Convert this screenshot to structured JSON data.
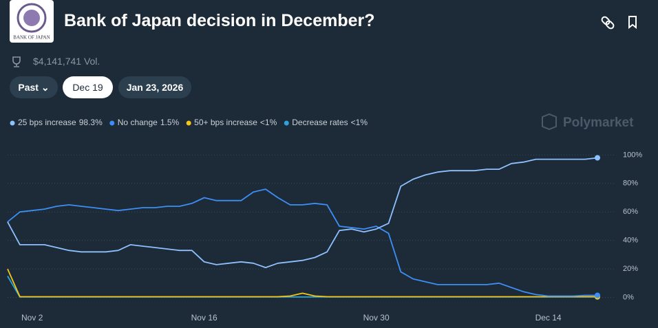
{
  "header": {
    "logo_text": "BANK OF JAPAN",
    "title": "Bank of Japan decision in December?",
    "volume": "$4,141,741 Vol."
  },
  "buttons": [
    "Past",
    "Dec 19",
    "Jan 23, 2026"
  ],
  "watermark": "Polymarket",
  "chart_data": {
    "type": "line",
    "categories": [
      null,
      null,
      "Nov 2",
      null,
      null,
      null,
      null,
      null,
      null,
      null,
      null,
      null,
      null,
      null,
      null,
      null,
      "Nov 16",
      null,
      null,
      null,
      null,
      null,
      null,
      null,
      null,
      null,
      null,
      null,
      null,
      null,
      "Nov 30",
      null,
      null,
      null,
      null,
      null,
      null,
      null,
      null,
      null,
      null,
      null,
      null,
      null,
      "Dec 14",
      null,
      null,
      null,
      null
    ],
    "series": [
      {
        "name": "25 bps increase",
        "color": "#8ec1ff",
        "values": [
          53,
          37,
          37,
          37,
          35,
          33,
          32,
          32,
          32,
          33,
          37,
          36,
          35,
          34,
          33,
          33,
          25,
          23,
          24,
          25,
          24,
          21,
          24,
          25,
          26,
          28,
          32,
          47,
          48,
          46,
          48,
          52,
          78,
          83,
          86,
          88,
          89,
          89,
          89,
          90,
          90,
          94,
          95,
          97,
          97,
          97,
          97,
          97,
          98
        ]
      },
      {
        "name": "No change",
        "color": "#3d8ff5",
        "values": [
          53,
          60,
          61,
          62,
          64,
          65,
          64,
          63,
          62,
          61,
          62,
          63,
          63,
          64,
          64,
          66,
          70,
          68,
          68,
          68,
          74,
          76,
          70,
          65,
          65,
          66,
          65,
          50,
          49,
          48,
          50,
          45,
          18,
          13,
          11,
          9,
          9,
          9,
          9,
          9,
          10,
          7,
          4,
          2,
          1,
          1,
          1,
          1.5,
          1.5
        ]
      },
      {
        "name": "50+ bps increase",
        "color": "#f5c518",
        "values": [
          20,
          0.5,
          0.5,
          0.5,
          0.5,
          0.5,
          0.5,
          0.5,
          0.5,
          0.5,
          0.5,
          0.5,
          0.5,
          0.5,
          0.5,
          0.5,
          0.5,
          0.5,
          0.5,
          0.5,
          0.5,
          0.5,
          0.5,
          1,
          3,
          1,
          0.5,
          0.5,
          0.5,
          0.5,
          0.5,
          0.5,
          0.5,
          0.5,
          0.5,
          0.5,
          0.5,
          0.5,
          0.5,
          0.5,
          0.5,
          0.5,
          0.5,
          0.5,
          0.5,
          0.5,
          0.5,
          0.5,
          0.5
        ]
      },
      {
        "name": "Decrease rates",
        "color": "#2ba3db",
        "values": [
          15,
          0.3,
          0.3,
          0.3,
          0.3,
          0.3,
          0.3,
          0.3,
          0.3,
          0.3,
          0.3,
          0.3,
          0.3,
          0.3,
          0.3,
          0.3,
          0.3,
          0.3,
          0.3,
          0.3,
          0.3,
          0.3,
          0.3,
          0.3,
          0.3,
          0.3,
          0.3,
          0.3,
          0.3,
          0.3,
          0.3,
          0.3,
          0.3,
          0.3,
          0.3,
          0.3,
          0.3,
          0.3,
          0.3,
          0.3,
          0.3,
          0.3,
          0.3,
          0.3,
          0.3,
          0.3,
          0.3,
          0.3,
          0.3
        ]
      }
    ],
    "legend_values": [
      "98.3%",
      "1.5%",
      "<1%",
      "<1%"
    ],
    "ylim": [
      -6,
      105
    ],
    "yticks": [
      {
        "value": 0,
        "label": "0%"
      },
      {
        "value": 20,
        "label": "20%"
      },
      {
        "value": 40,
        "label": "40%"
      },
      {
        "value": 60,
        "label": "60%"
      },
      {
        "value": 80,
        "label": "80%"
      },
      {
        "value": 100,
        "label": "100%"
      }
    ],
    "grid": true
  }
}
